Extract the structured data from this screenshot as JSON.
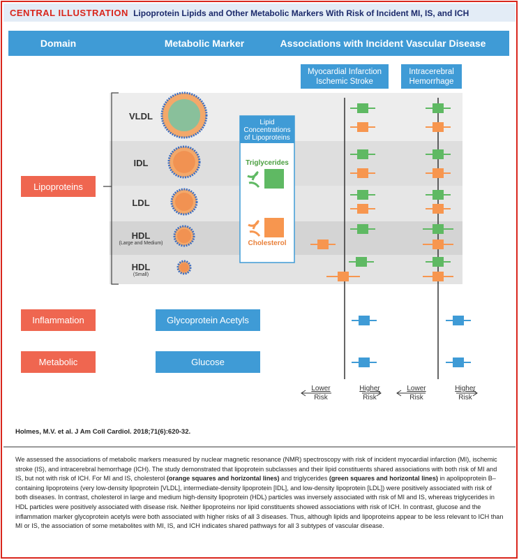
{
  "header": {
    "label": "CENTRAL ILLUSTRATION",
    "title": "Lipoprotein Lipids and Other Metabolic Markers With Risk of Incident MI, IS, and ICH"
  },
  "columns": [
    "Domain",
    "Metabolic Marker",
    "Associations with Incident Vascular Disease"
  ],
  "outcomes": [
    [
      "Myocardial Infarction",
      "Ischemic Stroke"
    ],
    [
      "Intracerebral",
      "Hemorrhage"
    ]
  ],
  "domains": [
    "Lipoproteins",
    "Inflammation",
    "Metabolic"
  ],
  "lipoproteins": [
    {
      "name": "VLDL"
    },
    {
      "name": "IDL"
    },
    {
      "name": "LDL"
    },
    {
      "name": "HDL",
      "sub": "(Large and Medium)"
    },
    {
      "name": "HDL",
      "sub": "(Small)"
    }
  ],
  "legend": {
    "title": [
      "Lipid",
      "Concentrations",
      "of Lipoproteins"
    ],
    "items": [
      "Triglycerides",
      "Cholesterol"
    ]
  },
  "markers": [
    "Glycoprotein Acetyls",
    "Glucose"
  ],
  "axis": [
    [
      "Lower",
      "Risk"
    ],
    [
      "Higher",
      "Risk"
    ],
    [
      "Lower",
      "Risk"
    ],
    [
      "Higher",
      "Risk"
    ]
  ],
  "citation": "Holmes, M.V. et al. J Am Coll Cardiol. 2018;71(6):620-32.",
  "caption": [
    "We assessed the associations of metabolic markers measured by nuclear magnetic resonance (NMR) spectroscopy with risk of incident myocardial infarction (MI), ischemic stroke (IS), and intracerebral hemorrhage (ICH). The study demonstrated that lipoprotein subclasses and their lipid constituents shared associations with both risk of MI and IS, but not with risk of ICH. For MI and IS, cholesterol ",
    "(orange squares and horizontal lines)",
    " and triglycerides ",
    "(green squares and horizontal lines)",
    " in apolipoprotein B–containing lipoproteins (very low-density lipoprotein [VLDL], intermediate-density lipoprotein [IDL], and low-density lipoprotein [LDL]) were positively associated with risk of both diseases. In contrast, cholesterol in large and medium high-density lipoprotein (HDL) particles was inversely associated with risk of MI and IS, whereas triglycerides in HDL particles were positively associated with disease risk. Neither lipoproteins nor lipid constituents showed associations with risk of ICH. In contrast, glucose and the inflammation marker glycoprotein acetyls were both associated with higher risks of all 3 diseases. Thus, although lipids and lipoproteins appear to be less relevant to ICH than MI or IS, the association of some metabolites with MI, IS, and ICH indicates shared pathways for all 3 subtypes of vascular disease."
  ]
}
